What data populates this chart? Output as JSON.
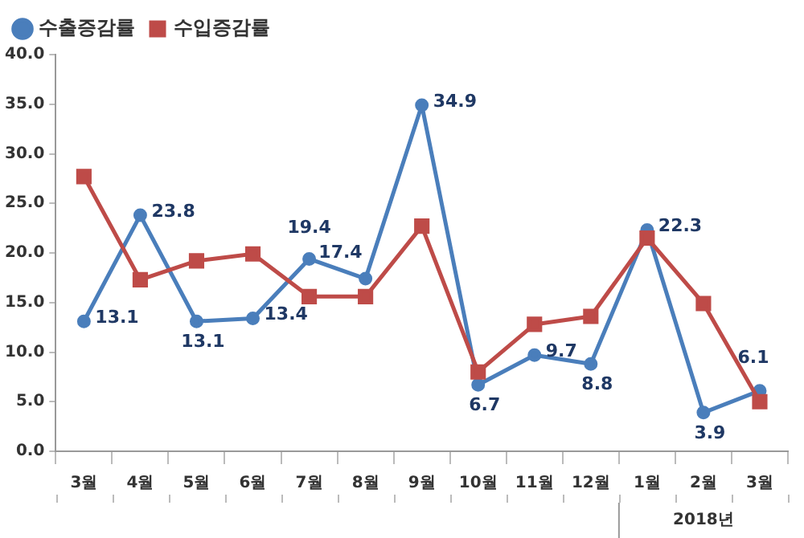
{
  "chart_data": {
    "type": "line",
    "categories": [
      "3월",
      "4월",
      "5월",
      "6월",
      "7월",
      "8월",
      "9월",
      "10월",
      "11월",
      "12월",
      "1월",
      "2월",
      "3월"
    ],
    "series": [
      {
        "name": "수출증감률",
        "color": "#4a7ebb",
        "marker": "circle",
        "values": [
          13.1,
          23.8,
          13.1,
          13.4,
          19.4,
          17.4,
          34.9,
          6.7,
          9.7,
          8.8,
          22.3,
          3.9,
          6.1
        ],
        "value_labels": [
          "13.1",
          "23.8",
          "13.1",
          "13.4",
          "19.4",
          "17.4",
          "34.9",
          "6.7",
          "9.7",
          "8.8",
          "22.3",
          "3.9",
          "6.1"
        ]
      },
      {
        "name": "수입증감률",
        "color": "#be4b48",
        "marker": "square",
        "values": [
          27.7,
          17.3,
          19.2,
          19.9,
          15.6,
          15.6,
          22.7,
          8.0,
          12.8,
          13.6,
          21.5,
          14.9,
          5.0
        ]
      }
    ],
    "ylim": [
      0,
      40
    ],
    "yticks": [
      {
        "value": 0,
        "label": "0.0"
      },
      {
        "value": 5,
        "label": "5.0"
      },
      {
        "value": 10,
        "label": "10.0"
      },
      {
        "value": 15,
        "label": "15.0"
      },
      {
        "value": 20,
        "label": "20.0"
      },
      {
        "value": 25,
        "label": "25.0"
      },
      {
        "value": 30,
        "label": "30.0"
      },
      {
        "value": 35,
        "label": "35.0"
      },
      {
        "value": 40,
        "label": "40.0"
      }
    ],
    "annotations": [
      "2018년"
    ],
    "grid": false,
    "legend": "top left",
    "line_style": "solid"
  }
}
